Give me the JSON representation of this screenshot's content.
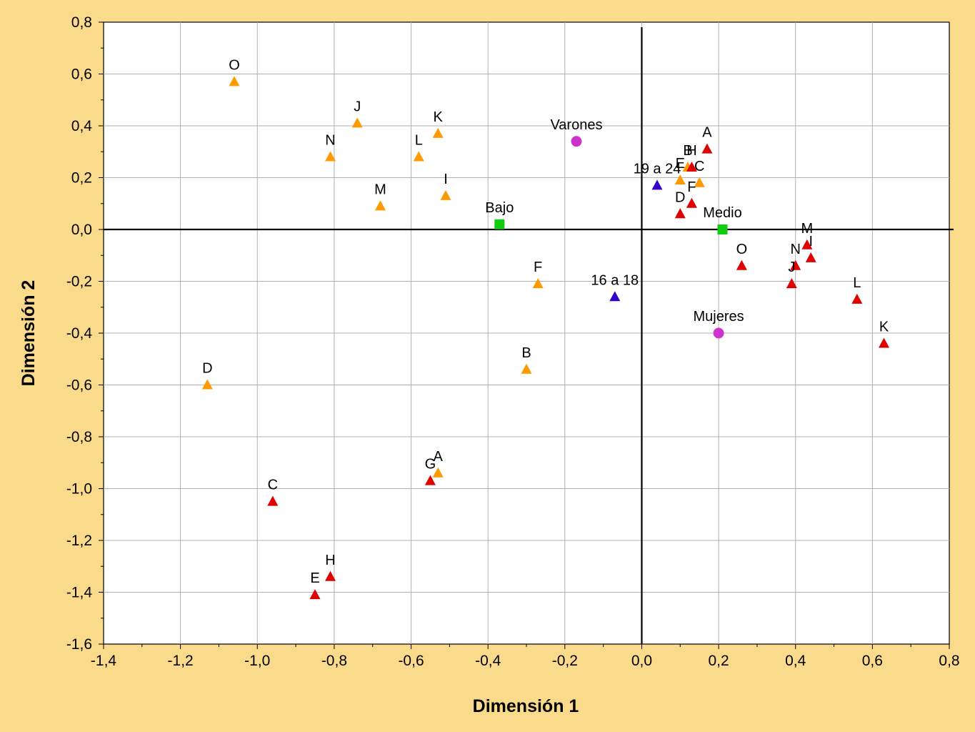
{
  "chart_data": {
    "type": "scatter",
    "title": "",
    "xlabel": "Dimensión 1",
    "ylabel": "Dimensión 2",
    "xlim": [
      -1.4,
      0.8
    ],
    "ylim": [
      -1.6,
      0.8
    ],
    "x_ticks": [
      "-1,4",
      "-1,2",
      "-1,0",
      "-0,8",
      "-0,6",
      "-0,4",
      "-0,2",
      "0,0",
      "0,2",
      "0,4",
      "0,6",
      "0,8"
    ],
    "y_ticks": [
      "-1,6",
      "-1,4",
      "-1,2",
      "-1,0",
      "-0,8",
      "-0,6",
      "-0,4",
      "-0,2",
      "0,0",
      "0,2",
      "0,4",
      "0,6",
      "0,8"
    ],
    "grid": true,
    "reference_lines": {
      "x": 0,
      "y": 0
    },
    "series": [
      {
        "marker": "triangle",
        "color": "#FF9900",
        "points": [
          {
            "label": "O",
            "x": -1.06,
            "y": 0.57
          },
          {
            "label": "J",
            "x": -0.74,
            "y": 0.41
          },
          {
            "label": "N",
            "x": -0.81,
            "y": 0.28
          },
          {
            "label": "K",
            "x": -0.53,
            "y": 0.37
          },
          {
            "label": "L",
            "x": -0.58,
            "y": 0.28
          },
          {
            "label": "M",
            "x": -0.68,
            "y": 0.09
          },
          {
            "label": "I",
            "x": -0.51,
            "y": 0.13
          },
          {
            "label": "F",
            "x": -0.27,
            "y": -0.21
          },
          {
            "label": "B",
            "x": -0.3,
            "y": -0.54
          },
          {
            "label": "D",
            "x": -1.13,
            "y": -0.6
          },
          {
            "label": "A",
            "x": -0.53,
            "y": -0.94
          },
          {
            "label": "E",
            "x": 0.1,
            "y": 0.19
          },
          {
            "label": "B",
            "x": 0.12,
            "y": 0.24
          },
          {
            "label": "C",
            "x": 0.15,
            "y": 0.18
          }
        ]
      },
      {
        "marker": "triangle",
        "color": "#E00000",
        "points": [
          {
            "label": "A",
            "x": 0.17,
            "y": 0.31
          },
          {
            "label": "H",
            "x": 0.13,
            "y": 0.24
          },
          {
            "label": "F",
            "x": 0.13,
            "y": 0.1
          },
          {
            "label": "D",
            "x": 0.1,
            "y": 0.06
          },
          {
            "label": "O",
            "x": 0.26,
            "y": -0.14
          },
          {
            "label": "M",
            "x": 0.43,
            "y": -0.06
          },
          {
            "label": "N",
            "x": 0.4,
            "y": -0.14
          },
          {
            "label": "I",
            "x": 0.44,
            "y": -0.11
          },
          {
            "label": "J",
            "x": 0.39,
            "y": -0.21
          },
          {
            "label": "L",
            "x": 0.56,
            "y": -0.27
          },
          {
            "label": "K",
            "x": 0.63,
            "y": -0.44
          },
          {
            "label": "G",
            "x": -0.55,
            "y": -0.97
          },
          {
            "label": "C",
            "x": -0.96,
            "y": -1.05
          },
          {
            "label": "H",
            "x": -0.81,
            "y": -1.34
          },
          {
            "label": "E",
            "x": -0.85,
            "y": -1.41
          }
        ]
      },
      {
        "marker": "triangle",
        "color": "#3300CC",
        "points": [
          {
            "label": "19 a 24",
            "x": 0.04,
            "y": 0.17
          },
          {
            "label": "16 a 18",
            "x": -0.07,
            "y": -0.26
          }
        ]
      },
      {
        "marker": "square",
        "color": "#11CC11",
        "points": [
          {
            "label": "Bajo",
            "x": -0.37,
            "y": 0.02
          },
          {
            "label": "Medio",
            "x": 0.21,
            "y": 0.0
          }
        ]
      },
      {
        "marker": "circle",
        "color": "#CC33CC",
        "points": [
          {
            "label": "Varones",
            "x": -0.17,
            "y": 0.34
          },
          {
            "label": "Mujeres",
            "x": 0.2,
            "y": -0.4
          }
        ]
      }
    ]
  }
}
